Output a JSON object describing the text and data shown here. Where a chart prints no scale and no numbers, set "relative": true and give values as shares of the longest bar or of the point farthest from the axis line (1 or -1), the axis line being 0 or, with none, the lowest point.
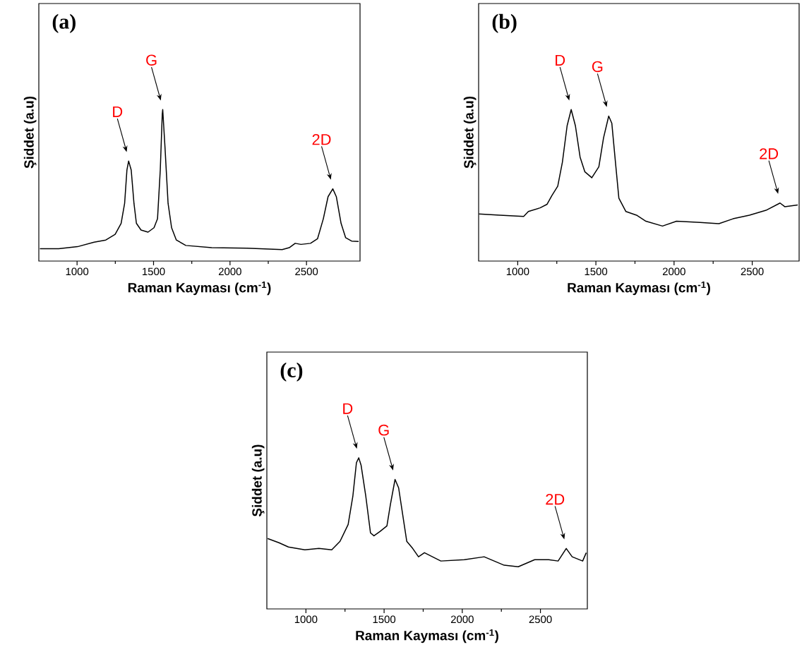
{
  "chart_data": [
    {
      "type": "line",
      "title": "(a)",
      "xlabel": "Raman Kayması (cm$^{-1}$)",
      "ylabel": "Şiddet (a.u)",
      "relative": true,
      "xlim": [
        750,
        2850
      ],
      "xticks": [
        1000,
        1500,
        2000,
        2500
      ],
      "annotations": [
        {
          "text": "D",
          "x": 1337,
          "y": 0.66
        },
        {
          "text": "G",
          "x": 1560,
          "y": 1.0
        },
        {
          "text": "2D",
          "x": 2672,
          "y": 0.477
        }
      ],
      "series": [
        {
          "color": "#000000",
          "x": [
            757,
            880,
            1003,
            1111,
            1188,
            1249,
            1288,
            1311,
            1326,
            1337,
            1354,
            1372,
            1388,
            1418,
            1464,
            1503,
            1526,
            1544,
            1557,
            1560,
            1575,
            1595,
            1618,
            1649,
            1711,
            1880,
            2111,
            2341,
            2387,
            2426,
            2464,
            2526,
            2572,
            2610,
            2641,
            2672,
            2695,
            2726,
            2756,
            2795,
            2841
          ],
          "values": [
            0.081,
            0.081,
            0.095,
            0.125,
            0.139,
            0.176,
            0.249,
            0.381,
            0.601,
            0.66,
            0.601,
            0.381,
            0.249,
            0.205,
            0.191,
            0.22,
            0.279,
            0.601,
            0.97,
            1.0,
            0.748,
            0.381,
            0.22,
            0.139,
            0.103,
            0.088,
            0.085,
            0.076,
            0.088,
            0.117,
            0.11,
            0.117,
            0.147,
            0.279,
            0.425,
            0.477,
            0.425,
            0.249,
            0.154,
            0.132,
            0.129
          ]
        }
      ]
    },
    {
      "type": "line",
      "title": "(b)",
      "xlabel": "Raman Kayması (cm$^{-1}$)",
      "ylabel": "Şiddet (a.u)",
      "relative": true,
      "xlim": [
        750,
        2800
      ],
      "xticks": [
        1000,
        1500,
        2000,
        2500
      ],
      "annotations": [
        {
          "text": "D",
          "x": 1342,
          "y": 1.0
        },
        {
          "text": "G",
          "x": 1582,
          "y": 0.957
        },
        {
          "text": "2D",
          "x": 2678,
          "y": 0.383
        }
      ],
      "series": [
        {
          "color": "#000000",
          "x": [
            752,
            887,
            1038,
            1068,
            1143,
            1188,
            1218,
            1256,
            1286,
            1316,
            1342,
            1369,
            1399,
            1429,
            1474,
            1519,
            1549,
            1582,
            1602,
            1625,
            1647,
            1692,
            1760,
            1820,
            1926,
            2016,
            2166,
            2287,
            2377,
            2482,
            2588,
            2633,
            2678,
            2708,
            2791
          ],
          "values": [
            0.311,
            0.303,
            0.295,
            0.327,
            0.351,
            0.375,
            0.431,
            0.494,
            0.654,
            0.893,
            1.0,
            0.893,
            0.686,
            0.59,
            0.55,
            0.622,
            0.813,
            0.957,
            0.909,
            0.654,
            0.415,
            0.327,
            0.303,
            0.263,
            0.231,
            0.263,
            0.255,
            0.247,
            0.279,
            0.303,
            0.335,
            0.359,
            0.383,
            0.359,
            0.37
          ]
        }
      ]
    },
    {
      "type": "line",
      "title": "(c)",
      "xlabel": "Raman Kayması (cm$^{-1}$)",
      "ylabel": "Şiddet (a.u)",
      "relative": true,
      "xlim": [
        750,
        2800
      ],
      "xticks": [
        1000,
        1500,
        2000,
        2500
      ],
      "annotations": [
        {
          "text": "D",
          "x": 1338,
          "y": 1.0
        },
        {
          "text": "G",
          "x": 1570,
          "y": 0.857
        },
        {
          "text": "2D",
          "x": 2665,
          "y": 0.4
        }
      ],
      "series": [
        {
          "color": "#000000",
          "x": [
            755,
            828,
            888,
            993,
            1083,
            1165,
            1218,
            1270,
            1300,
            1323,
            1338,
            1353,
            1383,
            1413,
            1435,
            1473,
            1518,
            1540,
            1570,
            1593,
            1623,
            1645,
            1683,
            1720,
            1758,
            1863,
            2013,
            2140,
            2268,
            2358,
            2463,
            2553,
            2613,
            2665,
            2703,
            2770,
            2793
          ],
          "values": [
            0.466,
            0.438,
            0.41,
            0.391,
            0.4,
            0.391,
            0.447,
            0.559,
            0.745,
            0.968,
            1.0,
            0.95,
            0.745,
            0.503,
            0.484,
            0.512,
            0.549,
            0.689,
            0.857,
            0.801,
            0.596,
            0.447,
            0.4,
            0.345,
            0.372,
            0.317,
            0.326,
            0.345,
            0.289,
            0.279,
            0.326,
            0.326,
            0.317,
            0.4,
            0.345,
            0.317,
            0.372
          ]
        }
      ]
    }
  ]
}
